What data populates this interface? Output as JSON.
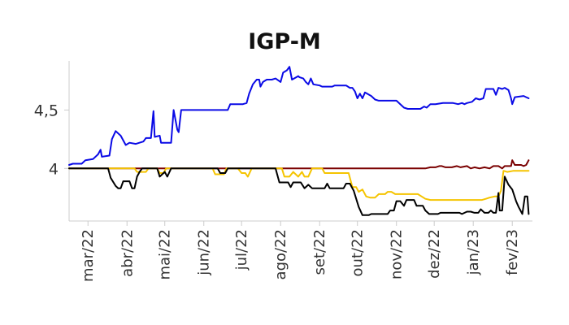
{
  "chart_data": {
    "type": "line",
    "title": "IGP-M",
    "xlabel": "",
    "ylabel": "",
    "x_range": [
      "2022-02-14",
      "2023-02-17"
    ],
    "ylim": [
      3.55,
      4.92
    ],
    "yticks": [
      {
        "value": 4.0,
        "label": "4"
      },
      {
        "value": 4.5,
        "label": "4,5"
      }
    ],
    "xticks": [
      {
        "date": "2022-03-01",
        "label": "mar/22"
      },
      {
        "date": "2022-04-01",
        "label": "abr/22"
      },
      {
        "date": "2022-05-01",
        "label": "mai/22"
      },
      {
        "date": "2022-06-01",
        "label": "jun/22"
      },
      {
        "date": "2022-07-01",
        "label": "jul/22"
      },
      {
        "date": "2022-08-01",
        "label": "ago/22"
      },
      {
        "date": "2022-09-01",
        "label": "set/22"
      },
      {
        "date": "2022-10-01",
        "label": "out/22"
      },
      {
        "date": "2022-11-01",
        "label": "nov/22"
      },
      {
        "date": "2022-12-01",
        "label": "dez/22"
      },
      {
        "date": "2023-01-01",
        "label": "jan/23"
      },
      {
        "date": "2023-02-01",
        "label": "fev/23"
      }
    ],
    "grid": false,
    "legend": "none",
    "series": [
      {
        "color": "#0a0ae6",
        "points": [
          [
            "2022-02-14",
            4.03
          ],
          [
            "2022-02-17",
            4.04
          ],
          [
            "2022-02-24",
            4.04
          ],
          [
            "2022-02-27",
            4.07
          ],
          [
            "2022-03-05",
            4.08
          ],
          [
            "2022-03-09",
            4.12
          ],
          [
            "2022-03-11",
            4.16
          ],
          [
            "2022-03-12",
            4.1
          ],
          [
            "2022-03-18",
            4.11
          ],
          [
            "2022-03-20",
            4.25
          ],
          [
            "2022-03-23",
            4.32
          ],
          [
            "2022-03-27",
            4.28
          ],
          [
            "2022-03-31",
            4.2
          ],
          [
            "2022-04-03",
            4.22
          ],
          [
            "2022-04-08",
            4.21
          ],
          [
            "2022-04-14",
            4.23
          ],
          [
            "2022-04-16",
            4.26
          ],
          [
            "2022-04-20",
            4.26
          ],
          [
            "2022-04-22",
            4.49
          ],
          [
            "2022-04-23",
            4.27
          ],
          [
            "2022-04-27",
            4.28
          ],
          [
            "2022-04-28",
            4.22
          ],
          [
            "2022-05-06",
            4.22
          ],
          [
            "2022-05-08",
            4.5
          ],
          [
            "2022-05-11",
            4.33
          ],
          [
            "2022-05-12",
            4.31
          ],
          [
            "2022-05-14",
            4.5
          ],
          [
            "2022-06-20",
            4.5
          ],
          [
            "2022-06-22",
            4.55
          ],
          [
            "2022-07-02",
            4.55
          ],
          [
            "2022-07-05",
            4.56
          ],
          [
            "2022-07-07",
            4.64
          ],
          [
            "2022-07-10",
            4.72
          ],
          [
            "2022-07-13",
            4.76
          ],
          [
            "2022-07-15",
            4.76
          ],
          [
            "2022-07-16",
            4.7
          ],
          [
            "2022-07-18",
            4.74
          ],
          [
            "2022-07-21",
            4.76
          ],
          [
            "2022-07-25",
            4.76
          ],
          [
            "2022-07-28",
            4.77
          ],
          [
            "2022-08-01",
            4.74
          ],
          [
            "2022-08-03",
            4.82
          ],
          [
            "2022-08-06",
            4.84
          ],
          [
            "2022-08-08",
            4.87
          ],
          [
            "2022-08-10",
            4.76
          ],
          [
            "2022-08-15",
            4.79
          ],
          [
            "2022-08-16",
            4.78
          ],
          [
            "2022-08-19",
            4.77
          ],
          [
            "2022-08-21",
            4.74
          ],
          [
            "2022-08-23",
            4.72
          ],
          [
            "2022-08-25",
            4.77
          ],
          [
            "2022-08-27",
            4.72
          ],
          [
            "2022-09-01",
            4.71
          ],
          [
            "2022-09-03",
            4.7
          ],
          [
            "2022-09-11",
            4.7
          ],
          [
            "2022-09-13",
            4.71
          ],
          [
            "2022-09-22",
            4.71
          ],
          [
            "2022-09-25",
            4.69
          ],
          [
            "2022-09-27",
            4.69
          ],
          [
            "2022-09-29",
            4.66
          ],
          [
            "2022-10-01",
            4.6
          ],
          [
            "2022-10-03",
            4.64
          ],
          [
            "2022-10-05",
            4.6
          ],
          [
            "2022-10-07",
            4.65
          ],
          [
            "2022-10-12",
            4.62
          ],
          [
            "2022-10-15",
            4.59
          ],
          [
            "2022-10-18",
            4.58
          ],
          [
            "2022-11-01",
            4.58
          ],
          [
            "2022-11-04",
            4.55
          ],
          [
            "2022-11-07",
            4.52
          ],
          [
            "2022-11-10",
            4.51
          ],
          [
            "2022-11-20",
            4.51
          ],
          [
            "2022-11-23",
            4.53
          ],
          [
            "2022-11-25",
            4.52
          ],
          [
            "2022-11-28",
            4.55
          ],
          [
            "2022-12-02",
            4.55
          ],
          [
            "2022-12-08",
            4.56
          ],
          [
            "2022-12-16",
            4.56
          ],
          [
            "2022-12-20",
            4.55
          ],
          [
            "2022-12-23",
            4.56
          ],
          [
            "2022-12-25",
            4.55
          ],
          [
            "2022-12-27",
            4.56
          ],
          [
            "2022-12-31",
            4.57
          ],
          [
            "2023-01-03",
            4.6
          ],
          [
            "2023-01-06",
            4.59
          ],
          [
            "2023-01-09",
            4.6
          ],
          [
            "2023-01-11",
            4.68
          ],
          [
            "2023-01-17",
            4.68
          ],
          [
            "2023-01-19",
            4.63
          ],
          [
            "2023-01-21",
            4.69
          ],
          [
            "2023-01-24",
            4.68
          ],
          [
            "2023-01-26",
            4.69
          ],
          [
            "2023-01-29",
            4.67
          ],
          [
            "2023-01-31",
            4.6
          ],
          [
            "2023-02-01",
            4.55
          ],
          [
            "2023-02-03",
            4.61
          ],
          [
            "2023-02-10",
            4.62
          ],
          [
            "2023-02-12",
            4.61
          ],
          [
            "2023-02-14",
            4.6
          ]
        ]
      },
      {
        "color": "#7a0000",
        "points": [
          [
            "2022-02-14",
            4.0
          ],
          [
            "2022-11-24",
            4.0
          ],
          [
            "2022-11-28",
            4.01
          ],
          [
            "2022-12-02",
            4.01
          ],
          [
            "2022-12-05",
            4.02
          ],
          [
            "2022-12-07",
            4.02
          ],
          [
            "2022-12-10",
            4.01
          ],
          [
            "2022-12-15",
            4.01
          ],
          [
            "2022-12-19",
            4.02
          ],
          [
            "2022-12-22",
            4.01
          ],
          [
            "2022-12-27",
            4.02
          ],
          [
            "2022-12-30",
            4.0
          ],
          [
            "2023-01-02",
            4.01
          ],
          [
            "2023-01-06",
            4.0
          ],
          [
            "2023-01-10",
            4.01
          ],
          [
            "2023-01-14",
            4.0
          ],
          [
            "2023-01-17",
            4.02
          ],
          [
            "2023-01-21",
            4.02
          ],
          [
            "2023-01-24",
            4.0
          ],
          [
            "2023-01-26",
            4.02
          ],
          [
            "2023-01-31",
            4.02
          ],
          [
            "2023-02-01",
            4.07
          ],
          [
            "2023-02-03",
            4.03
          ],
          [
            "2023-02-08",
            4.03
          ],
          [
            "2023-02-10",
            4.02
          ],
          [
            "2023-02-12",
            4.03
          ],
          [
            "2023-02-14",
            4.07
          ]
        ]
      },
      {
        "color": "#f5c400",
        "points": [
          [
            "2022-02-14",
            4.0
          ],
          [
            "2022-04-07",
            4.0
          ],
          [
            "2022-04-09",
            3.97
          ],
          [
            "2022-04-16",
            3.97
          ],
          [
            "2022-04-18",
            4.0
          ],
          [
            "2022-04-25",
            4.0
          ],
          [
            "2022-04-27",
            3.96
          ],
          [
            "2022-04-30",
            3.96
          ],
          [
            "2022-05-02",
            4.0
          ],
          [
            "2022-06-08",
            4.0
          ],
          [
            "2022-06-10",
            3.95
          ],
          [
            "2022-06-17",
            3.95
          ],
          [
            "2022-06-19",
            4.0
          ],
          [
            "2022-06-28",
            4.0
          ],
          [
            "2022-07-01",
            3.96
          ],
          [
            "2022-07-04",
            3.96
          ],
          [
            "2022-07-06",
            3.93
          ],
          [
            "2022-07-09",
            4.0
          ],
          [
            "2022-08-02",
            4.0
          ],
          [
            "2022-08-04",
            3.93
          ],
          [
            "2022-08-08",
            3.93
          ],
          [
            "2022-08-11",
            3.97
          ],
          [
            "2022-08-15",
            3.93
          ],
          [
            "2022-08-18",
            3.97
          ],
          [
            "2022-08-20",
            3.93
          ],
          [
            "2022-08-23",
            3.93
          ],
          [
            "2022-08-26",
            4.0
          ],
          [
            "2022-09-03",
            4.0
          ],
          [
            "2022-09-05",
            3.96
          ],
          [
            "2022-09-24",
            3.96
          ],
          [
            "2022-09-27",
            3.84
          ],
          [
            "2022-09-30",
            3.84
          ],
          [
            "2022-10-02",
            3.8
          ],
          [
            "2022-10-05",
            3.82
          ],
          [
            "2022-10-08",
            3.76
          ],
          [
            "2022-10-11",
            3.75
          ],
          [
            "2022-10-15",
            3.75
          ],
          [
            "2022-10-18",
            3.78
          ],
          [
            "2022-10-23",
            3.78
          ],
          [
            "2022-10-25",
            3.8
          ],
          [
            "2022-10-28",
            3.8
          ],
          [
            "2022-10-31",
            3.78
          ],
          [
            "2022-11-06",
            3.78
          ],
          [
            "2022-11-10",
            3.78
          ],
          [
            "2022-11-18",
            3.78
          ],
          [
            "2022-11-21",
            3.76
          ],
          [
            "2022-11-24",
            3.74
          ],
          [
            "2022-11-28",
            3.73
          ],
          [
            "2023-01-08",
            3.73
          ],
          [
            "2023-01-11",
            3.74
          ],
          [
            "2023-01-14",
            3.75
          ],
          [
            "2023-01-18",
            3.76
          ],
          [
            "2023-01-21",
            3.76
          ],
          [
            "2023-01-23",
            3.81
          ],
          [
            "2023-01-25",
            3.98
          ],
          [
            "2023-01-28",
            3.97
          ],
          [
            "2023-02-02",
            3.98
          ],
          [
            "2023-02-14",
            3.98
          ]
        ]
      },
      {
        "color": "#000000",
        "points": [
          [
            "2022-02-14",
            4.0
          ],
          [
            "2022-03-17",
            4.0
          ],
          [
            "2022-03-19",
            3.92
          ],
          [
            "2022-03-23",
            3.85
          ],
          [
            "2022-03-25",
            3.83
          ],
          [
            "2022-03-27",
            3.83
          ],
          [
            "2022-03-29",
            3.89
          ],
          [
            "2022-04-03",
            3.89
          ],
          [
            "2022-04-05",
            3.83
          ],
          [
            "2022-04-07",
            3.83
          ],
          [
            "2022-04-09",
            3.93
          ],
          [
            "2022-04-11",
            3.97
          ],
          [
            "2022-04-13",
            4.0
          ],
          [
            "2022-04-25",
            4.0
          ],
          [
            "2022-04-27",
            3.93
          ],
          [
            "2022-05-01",
            3.97
          ],
          [
            "2022-05-03",
            3.93
          ],
          [
            "2022-05-06",
            4.0
          ],
          [
            "2022-06-12",
            4.0
          ],
          [
            "2022-06-14",
            3.96
          ],
          [
            "2022-06-18",
            3.96
          ],
          [
            "2022-06-20",
            4.0
          ],
          [
            "2022-07-28",
            4.0
          ],
          [
            "2022-07-31",
            3.88
          ],
          [
            "2022-08-07",
            3.88
          ],
          [
            "2022-08-09",
            3.84
          ],
          [
            "2022-08-11",
            3.88
          ],
          [
            "2022-08-17",
            3.88
          ],
          [
            "2022-08-20",
            3.83
          ],
          [
            "2022-08-23",
            3.86
          ],
          [
            "2022-08-26",
            3.83
          ],
          [
            "2022-09-05",
            3.83
          ],
          [
            "2022-09-07",
            3.87
          ],
          [
            "2022-09-09",
            3.83
          ],
          [
            "2022-09-20",
            3.83
          ],
          [
            "2022-09-22",
            3.87
          ],
          [
            "2022-09-25",
            3.87
          ],
          [
            "2022-09-28",
            3.81
          ],
          [
            "2022-10-02",
            3.67
          ],
          [
            "2022-10-05",
            3.6
          ],
          [
            "2022-10-10",
            3.6
          ],
          [
            "2022-10-12",
            3.61
          ],
          [
            "2022-10-25",
            3.61
          ],
          [
            "2022-10-27",
            3.64
          ],
          [
            "2022-10-30",
            3.64
          ],
          [
            "2022-11-01",
            3.72
          ],
          [
            "2022-11-04",
            3.72
          ],
          [
            "2022-11-07",
            3.68
          ],
          [
            "2022-11-09",
            3.73
          ],
          [
            "2022-11-15",
            3.73
          ],
          [
            "2022-11-17",
            3.68
          ],
          [
            "2022-11-22",
            3.68
          ],
          [
            "2022-11-24",
            3.64
          ],
          [
            "2022-11-27",
            3.61
          ],
          [
            "2022-12-04",
            3.61
          ],
          [
            "2022-12-06",
            3.62
          ],
          [
            "2022-12-21",
            3.62
          ],
          [
            "2022-12-23",
            3.61
          ],
          [
            "2022-12-27",
            3.63
          ],
          [
            "2022-12-30",
            3.63
          ],
          [
            "2023-01-02",
            3.62
          ],
          [
            "2023-01-05",
            3.62
          ],
          [
            "2023-01-07",
            3.65
          ],
          [
            "2023-01-10",
            3.62
          ],
          [
            "2023-01-13",
            3.62
          ],
          [
            "2023-01-15",
            3.64
          ],
          [
            "2023-01-17",
            3.62
          ],
          [
            "2023-01-19",
            3.62
          ],
          [
            "2023-01-21",
            3.79
          ],
          [
            "2023-01-22",
            3.64
          ],
          [
            "2023-01-24",
            3.64
          ],
          [
            "2023-01-26",
            3.93
          ],
          [
            "2023-01-29",
            3.86
          ],
          [
            "2023-02-01",
            3.82
          ],
          [
            "2023-02-04",
            3.72
          ],
          [
            "2023-02-06",
            3.67
          ],
          [
            "2023-02-09",
            3.61
          ],
          [
            "2023-02-11",
            3.76
          ],
          [
            "2023-02-13",
            3.76
          ],
          [
            "2023-02-14",
            3.61
          ]
        ]
      }
    ]
  }
}
